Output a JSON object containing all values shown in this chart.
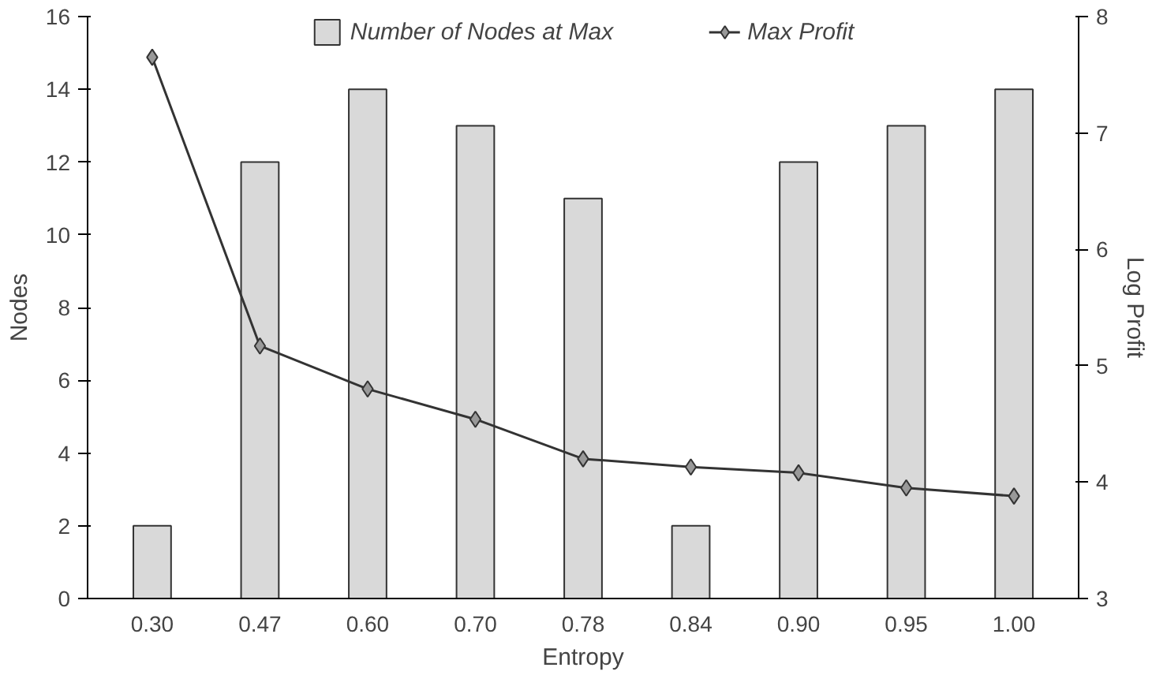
{
  "chart_data": {
    "type": "bar",
    "xlabel": "Entropy",
    "ylabel": "Nodes",
    "y2label": "Log Profit",
    "categories": [
      "0.30",
      "0.47",
      "0.60",
      "0.70",
      "0.78",
      "0.84",
      "0.90",
      "0.95",
      "1.00"
    ],
    "series": [
      {
        "name": "Number of Nodes at Max",
        "color": "#d9d9d9",
        "values": [
          2,
          12,
          14,
          13,
          11,
          2,
          12,
          13,
          14
        ]
      },
      {
        "name": "Max Profit",
        "type": "line",
        "axis": "y2",
        "color": "#333333",
        "marker": "diamond",
        "values": [
          7.65,
          5.17,
          4.8,
          4.54,
          4.2,
          4.13,
          4.08,
          3.95,
          3.88
        ]
      }
    ],
    "ylim": [
      0,
      16
    ],
    "yticks": [
      0,
      2,
      4,
      6,
      8,
      10,
      12,
      14,
      16
    ],
    "y2lim": [
      3,
      8
    ],
    "y2ticks": [
      3,
      4,
      5,
      6,
      7,
      8
    ],
    "grid": false,
    "legend": "top"
  }
}
